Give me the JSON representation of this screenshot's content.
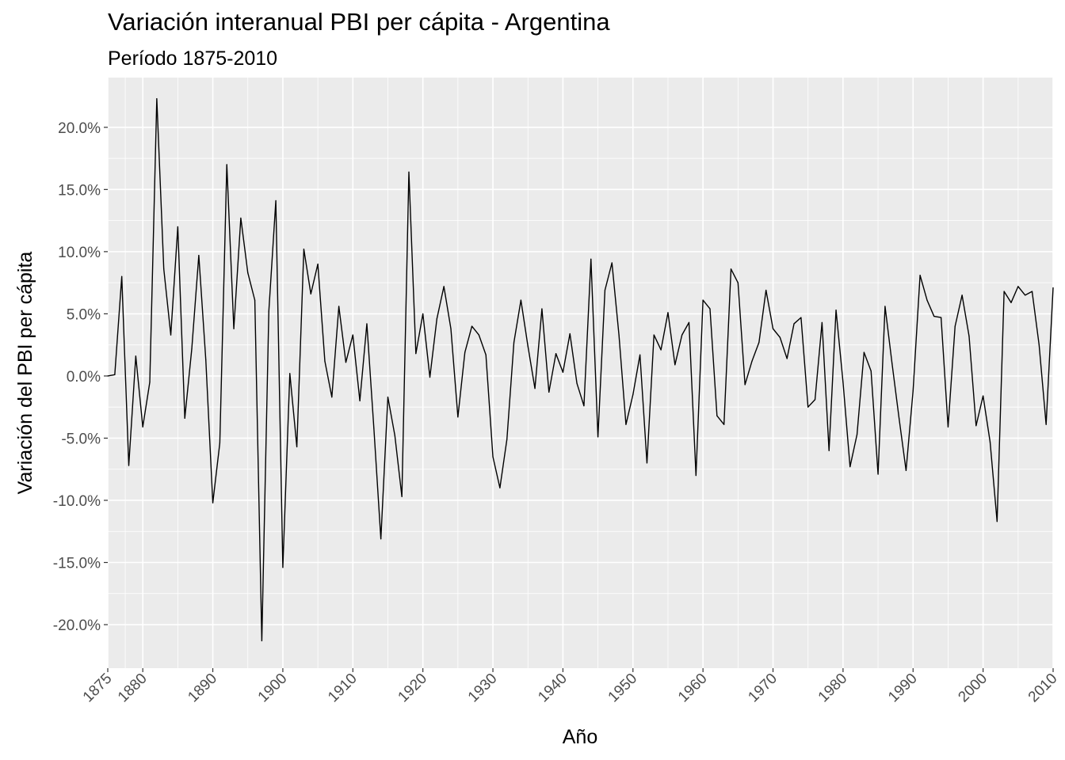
{
  "title": "Variación interanual PBI per cápita - Argentina",
  "subtitle": "Período 1875-2010",
  "chart_data": {
    "type": "line",
    "title": "Variación interanual PBI per cápita - Argentina",
    "subtitle": "Período 1875-2010",
    "xlabel": "Año",
    "ylabel": "Variación del PBI per cápita",
    "xlim": [
      1875,
      2010
    ],
    "ylim": [
      -23.5,
      24.0
    ],
    "x_ticks": [
      1875,
      1880,
      1890,
      1900,
      1910,
      1920,
      1930,
      1940,
      1950,
      1960,
      1970,
      1980,
      1990,
      2000,
      2010
    ],
    "x_tick_labels": [
      "1875",
      "1880",
      "1890",
      "1900",
      "1910",
      "1920",
      "1930",
      "1940",
      "1950",
      "1960",
      "1970",
      "1980",
      "1990",
      "2000",
      "2010"
    ],
    "y_ticks": [
      -20,
      -15,
      -10,
      -5,
      0,
      5,
      10,
      15,
      20
    ],
    "y_tick_labels": [
      "-20.0%",
      "-15.0%",
      "-10.0%",
      "-5.0%",
      "0.0%",
      "5.0%",
      "10.0%",
      "15.0%",
      "20.0%"
    ],
    "grid": true,
    "background": "#ebebeb",
    "grid_color": "#ffffff",
    "line_color": "#000000",
    "legend": "none",
    "series": [
      {
        "x": [
          1875,
          1876,
          1877,
          1878,
          1879,
          1880,
          1881,
          1882,
          1883,
          1884,
          1885,
          1886,
          1887,
          1888,
          1889,
          1890,
          1891,
          1892,
          1893,
          1894,
          1895,
          1896,
          1897,
          1898,
          1899,
          1900,
          1901,
          1902,
          1903,
          1904,
          1905,
          1906,
          1907,
          1908,
          1909,
          1910,
          1911,
          1912,
          1913,
          1914,
          1915,
          1916,
          1917,
          1918,
          1919,
          1920,
          1921,
          1922,
          1923,
          1924,
          1925,
          1926,
          1927,
          1928,
          1929,
          1930,
          1931,
          1932,
          1933,
          1934,
          1935,
          1936,
          1937,
          1938,
          1939,
          1940,
          1941,
          1942,
          1943,
          1944,
          1945,
          1946,
          1947,
          1948,
          1949,
          1950,
          1951,
          1952,
          1953,
          1954,
          1955,
          1956,
          1957,
          1958,
          1959,
          1960,
          1961,
          1962,
          1963,
          1964,
          1965,
          1966,
          1967,
          1968,
          1969,
          1970,
          1971,
          1972,
          1973,
          1974,
          1975,
          1976,
          1977,
          1978,
          1979,
          1980,
          1981,
          1982,
          1983,
          1984,
          1985,
          1986,
          1987,
          1988,
          1989,
          1990,
          1991,
          1992,
          1993,
          1994,
          1995,
          1996,
          1997,
          1998,
          1999,
          2000,
          2001,
          2002,
          2003,
          2004,
          2005,
          2006,
          2007,
          2008,
          2009,
          2010
        ],
        "y": [
          0.0,
          0.1,
          8.0,
          -7.2,
          1.6,
          -4.1,
          -0.5,
          22.3,
          8.6,
          3.3,
          12.0,
          -3.4,
          2.2,
          9.7,
          1.3,
          -10.2,
          -5.4,
          17.0,
          3.8,
          12.7,
          8.3,
          6.1,
          -21.3,
          5.2,
          14.1,
          -15.4,
          0.2,
          -5.7,
          10.2,
          6.6,
          9.0,
          1.2,
          -1.7,
          5.6,
          1.1,
          3.3,
          -2.0,
          4.2,
          -4.2,
          -13.1,
          -1.7,
          -4.8,
          -9.7,
          16.4,
          1.8,
          5.0,
          -0.1,
          4.6,
          7.2,
          3.8,
          -3.3,
          1.9,
          4.0,
          3.3,
          1.7,
          -6.5,
          -9.0,
          -5.1,
          2.7,
          6.1,
          2.4,
          -1.0,
          5.4,
          -1.3,
          1.8,
          0.3,
          3.4,
          -0.6,
          -2.4,
          9.4,
          -4.9,
          6.9,
          9.1,
          3.3,
          -3.9,
          -1.5,
          1.7,
          -7.0,
          3.3,
          2.1,
          5.1,
          0.9,
          3.3,
          4.3,
          -8.0,
          6.1,
          5.4,
          -3.2,
          -3.9,
          8.6,
          7.5,
          -0.7,
          1.2,
          2.7,
          6.9,
          3.8,
          3.1,
          1.4,
          4.2,
          4.7,
          -2.5,
          -1.9,
          4.3,
          -6.0,
          5.3,
          -0.5,
          -7.3,
          -4.7,
          1.9,
          0.4,
          -7.9,
          5.6,
          1.0,
          -3.4,
          -7.6,
          -1.2,
          8.1,
          6.1,
          4.8,
          4.7,
          -4.1,
          4.0,
          6.5,
          3.2,
          -4.0,
          -1.6,
          -5.3,
          -11.7,
          6.8,
          5.9,
          7.2,
          6.5,
          6.8,
          2.5,
          -3.9,
          7.1
        ]
      }
    ]
  }
}
